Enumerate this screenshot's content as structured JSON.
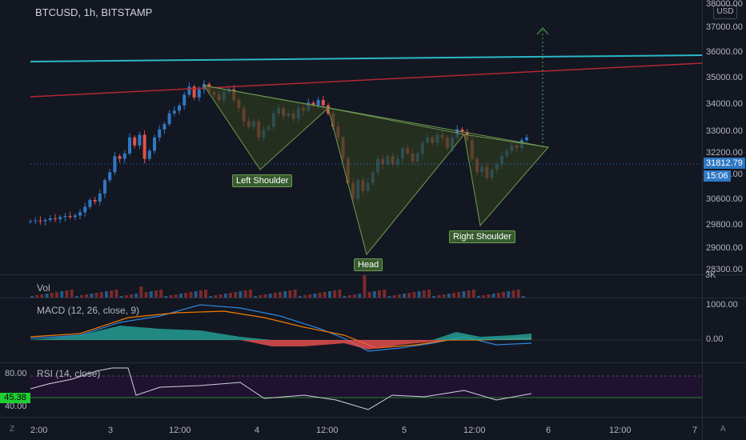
{
  "header": {
    "symbol": "BTCUSD, 1h, BITSTAMP",
    "currency": "USD"
  },
  "price_axis": [
    "38000.00",
    "37000.00",
    "36000.00",
    "35000.00",
    "34000.00",
    "33000.00",
    "32200.00",
    "31400.00",
    "30600.00",
    "29800.00",
    "29000.00",
    "28300.00"
  ],
  "current_price": "31812.79",
  "countdown": "15:06",
  "pattern_labels": {
    "left": "Left Shoulder",
    "head": "Head",
    "right": "Right Shoulder"
  },
  "vol": {
    "label": "Vol",
    "axis": "3K"
  },
  "macd": {
    "label": "MACD (12, 26, close, 9)",
    "ticks": [
      "1000.00",
      "0.00"
    ]
  },
  "rsi": {
    "label": "RSI (14, close)",
    "ticks": [
      "80.00",
      "40.00"
    ],
    "value": "45.38"
  },
  "time_axis": [
    "2:00",
    "3",
    "12:00",
    "4",
    "12:00",
    "5",
    "12:00",
    "6",
    "12:00",
    "7"
  ],
  "corners": {
    "left": "Z",
    "right": "A"
  },
  "colors": {
    "up": "#2f78c4",
    "down": "#e0534a",
    "background": "#131722",
    "teal_line": "#2bb7c5",
    "red_line": "#b22833",
    "pattern_fill": "#2d3b1f"
  }
}
